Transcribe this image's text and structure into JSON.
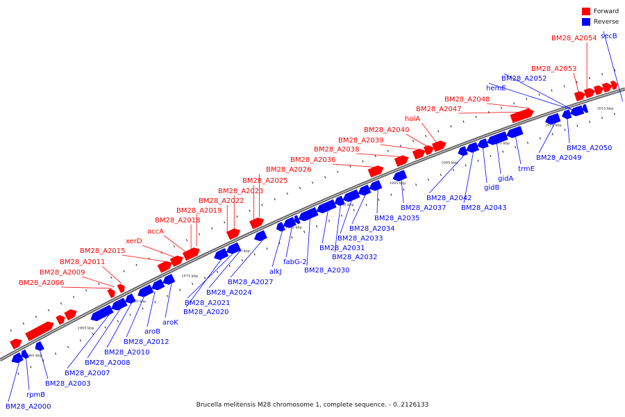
{
  "colors": {
    "forward": "#ff0000",
    "reverse": "#0000ff",
    "backbone": "#888888",
    "dots": "#111111"
  },
  "legend": {
    "forward_label": "Forward",
    "reverse_label": "Reverse"
  },
  "caption": "Brucella melitensis M28 chromosome 1, complete sequence. - 0..2126133",
  "axis": {
    "ticks": [
      {
        "label": "1960 kbp",
        "at": 1960
      },
      {
        "label": "1965 kbp",
        "at": 1965
      },
      {
        "label": "1970 kbp",
        "at": 1970
      },
      {
        "label": "1975 kbp",
        "at": 1975
      },
      {
        "label": "1980 kbp",
        "at": 1980
      },
      {
        "label": "1985 kbp",
        "at": 1985
      },
      {
        "label": "1990 kbp",
        "at": 1990
      },
      {
        "label": "1995 kbp",
        "at": 1995
      },
      {
        "label": "2000 kbp",
        "at": 2000
      },
      {
        "label": "2005 kbp",
        "at": 2005
      },
      {
        "label": "2010 kbp",
        "at": 2010
      },
      {
        "label": "2015 kbp",
        "at": 2015
      }
    ]
  },
  "forward_features": [
    "BM28_A2006",
    "BM28_A2009",
    "BM28_A2011",
    "BM28_A2015",
    "xerD",
    "accA",
    "BM28_A2018",
    "BM28_A2019",
    "BM28_A2022",
    "BM28_A2023",
    "BM28_A2025",
    "BM28_A2026",
    "BM28_A2036",
    "BM28_A2038",
    "BM28_A2039",
    "BM28_A2040",
    "holA",
    "BM28_A2047",
    "BM28_A2048",
    "BM28_A2053",
    "BM28_A2054"
  ],
  "reverse_features": [
    "BM28_A2000",
    "rpmB",
    "BM28_A2003",
    "BM28_A2007",
    "BM28_A2008",
    "BM28_A2010",
    "BM28_A2012",
    "aroB",
    "aroK",
    "BM28_A2020",
    "BM28_A2021",
    "BM28_A2024",
    "BM28_A2027",
    "alkJ",
    "fabG-2",
    "BM28_A2030",
    "BM28_A2031",
    "BM28_A2032",
    "BM28_A2033",
    "BM28_A2034",
    "BM28_A2035",
    "BM28_A2037",
    "BM28_A2042",
    "BM28_A2043",
    "gidB",
    "gidA",
    "trmE",
    "BM28_A2049",
    "BM28_A2050",
    "hemE",
    "BM28_A2052",
    "secB"
  ]
}
